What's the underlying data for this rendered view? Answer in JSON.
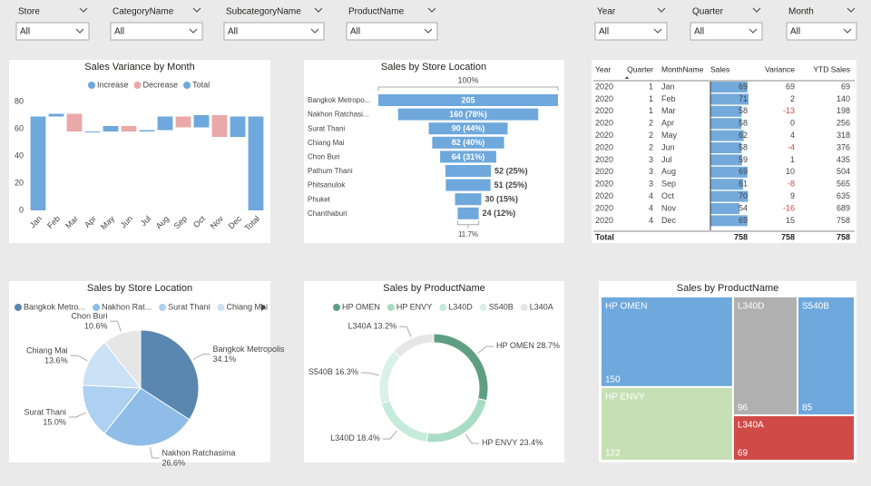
{
  "slicers": [
    {
      "label": "Store",
      "value": "All"
    },
    {
      "label": "CategoryName",
      "value": "All"
    },
    {
      "label": "SubcategoryName",
      "value": "All"
    },
    {
      "label": "ProductName",
      "value": "All"
    },
    {
      "label": "Year",
      "value": "All"
    },
    {
      "label": "Quarter",
      "value": "All"
    },
    {
      "label": "Month",
      "value": "All"
    }
  ],
  "table": {
    "columns": [
      "Year",
      "Quarter",
      "MonthName",
      "Sales",
      "Variance",
      "YTD Sales"
    ],
    "rows": [
      [
        2020,
        1,
        "Jan",
        69,
        69,
        69
      ],
      [
        2020,
        1,
        "Feb",
        71,
        2,
        140
      ],
      [
        2020,
        1,
        "Mar",
        58,
        -13,
        198
      ],
      [
        2020,
        2,
        "Apr",
        58,
        0,
        256
      ],
      [
        2020,
        2,
        "May",
        62,
        4,
        318
      ],
      [
        2020,
        2,
        "Jun",
        58,
        -4,
        376
      ],
      [
        2020,
        3,
        "Jul",
        59,
        1,
        435
      ],
      [
        2020,
        3,
        "Aug",
        69,
        10,
        504
      ],
      [
        2020,
        3,
        "Sep",
        61,
        -8,
        565
      ],
      [
        2020,
        4,
        "Oct",
        70,
        9,
        635
      ],
      [
        2020,
        4,
        "Nov",
        54,
        -16,
        689
      ],
      [
        2020,
        4,
        "Dec",
        69,
        15,
        758
      ]
    ],
    "total": {
      "label": "Total",
      "values": [
        758,
        758,
        758
      ]
    },
    "bar_color": "#5b9bd5"
  },
  "chart_data": [
    {
      "type": "waterfall",
      "title": "Sales Variance by Month",
      "legend": [
        {
          "name": "Increase",
          "color": "#6ea8dc"
        },
        {
          "name": "Decrease",
          "color": "#eaa8a8"
        },
        {
          "name": "Total",
          "color": "#6ea8dc"
        }
      ],
      "categories": [
        "Jan",
        "Feb",
        "Mar",
        "Apr",
        "May",
        "Jun",
        "Jul",
        "Aug",
        "Sep",
        "Oct",
        "Nov",
        "Dec",
        "Total"
      ],
      "values": [
        69,
        2,
        -13,
        0,
        4,
        -4,
        1,
        10,
        -8,
        9,
        -16,
        15,
        69
      ],
      "ylim": [
        0,
        80
      ],
      "yticks": [
        0,
        20,
        40,
        60,
        80
      ]
    },
    {
      "type": "funnel",
      "title": "Sales by Store Location",
      "categories": [
        "Bangkok Metropo...",
        "Nakhon Ratchasi...",
        "Surat Thani",
        "Chiang Mai",
        "Chon Buri",
        "Pathum Thani",
        "Phitsanulok",
        "Phuket",
        "Chanthaburi"
      ],
      "values": [
        205,
        160,
        90,
        82,
        64,
        52,
        51,
        30,
        24
      ],
      "value_labels": [
        "205",
        "160 (78%)",
        "90 (44%)",
        "82 (40%)",
        "64 (31%)",
        "52 (25%)",
        "51 (25%)",
        "30 (15%)",
        "24 (12%)"
      ],
      "top_label": "100%",
      "bottom_label": "11.7%",
      "color": "#6ea8dc"
    },
    {
      "type": "pie",
      "title": "Sales by Store Location",
      "categories": [
        "Bangkok Metropolis",
        "Nakhon Ratchasima",
        "Surat Thani",
        "Chiang Mai",
        "Chon Buri"
      ],
      "legend_labels": [
        "Bangkok Metro...",
        "Nakhon Rat...",
        "Surat Thani",
        "Chiang Mai"
      ],
      "values": [
        34.1,
        26.6,
        15.0,
        13.6,
        10.6
      ],
      "value_labels": [
        "34.1%",
        "26.6%",
        "15.0%",
        "13.6%",
        "10.6%"
      ],
      "colors": [
        "#5a87b0",
        "#8fbde7",
        "#aed0f1",
        "#cbe1f5",
        "#e6e6e6"
      ]
    },
    {
      "type": "donut",
      "title": "Sales by ProductName",
      "categories": [
        "HP OMEN",
        "HP ENVY",
        "L340D",
        "S540B",
        "L340A"
      ],
      "values": [
        28.7,
        23.4,
        18.4,
        16.3,
        13.2
      ],
      "value_labels": [
        "28.7%",
        "23.4%",
        "18.4%",
        "16.3%",
        "13.2%"
      ],
      "colors": [
        "#5f9e82",
        "#a9dcc5",
        "#c5ebdd",
        "#d9f1e8",
        "#e6e6e6"
      ]
    },
    {
      "type": "treemap",
      "title": "Sales by ProductName",
      "categories": [
        "HP OMEN",
        "HP ENVY",
        "L340D",
        "S540B",
        "L340A"
      ],
      "values": [
        150,
        122,
        96,
        85,
        69
      ],
      "colors": [
        "#6ea8dc",
        "#c6e0b4",
        "#b0b0b0",
        "#6ea8dc",
        "#d04a47"
      ]
    }
  ]
}
